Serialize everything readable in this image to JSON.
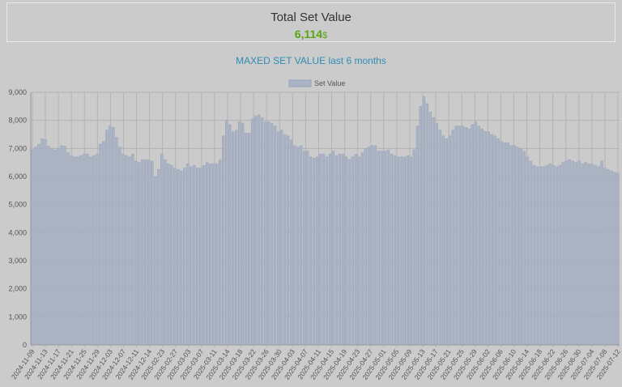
{
  "summary": {
    "title": "Total Set Value",
    "value": "6,114",
    "unit": "$",
    "value_color": "#5aa514"
  },
  "chart_title": {
    "main": "MAXED SET VALUE",
    "sub": "last 6 months"
  },
  "colors": {
    "bar_fill": "#aab3c4",
    "bar_stroke": "#97a4ba",
    "grid": "#b3b3b3",
    "text": "#555555",
    "title": "#2e8db3"
  },
  "chart_data": {
    "type": "bar",
    "title": "MAXED SET VALUE last 6 months",
    "legend": "top-center",
    "grid": true,
    "ylim": [
      0,
      9000
    ],
    "yticks": [
      "0",
      "1,000",
      "2,000",
      "3,000",
      "4,000",
      "5,000",
      "6,000",
      "7,000",
      "8,000",
      "9,000"
    ],
    "tick_labels": [
      "2024-11-09",
      "2024-11-13",
      "2024-11-17",
      "2024-11-21",
      "2024-11-25",
      "2024-11-29",
      "2024-12-03",
      "2024-12-07",
      "2024-12-11",
      "2024-12-14",
      "2025-02-23",
      "2025-02-27",
      "2025-03-03",
      "2025-03-07",
      "2025-03-11",
      "2025-03-14",
      "2025-03-18",
      "2025-03-22",
      "2025-03-26",
      "2025-03-30",
      "2025-04-03",
      "2025-04-07",
      "2025-04-11",
      "2025-04-15",
      "2025-04-19",
      "2025-04-23",
      "2025-04-27",
      "2025-05-01",
      "2025-05-05",
      "2025-05-09",
      "2025-05-13",
      "2025-05-17",
      "2025-05-21",
      "2025-05-25",
      "2025-05-29",
      "2025-06-02",
      "2025-06-06",
      "2025-06-10",
      "2025-06-14",
      "2025-06-18",
      "2025-06-22",
      "2025-06-26",
      "2025-06-30",
      "2025-07-04",
      "2025-07-08",
      "2025-07-12"
    ],
    "series": [
      {
        "name": "Set Value",
        "values": [
          6950,
          7050,
          7150,
          7350,
          7320,
          7080,
          7000,
          6950,
          7000,
          7100,
          7080,
          6850,
          6750,
          6700,
          6700,
          6750,
          6800,
          6800,
          6700,
          6750,
          6800,
          7150,
          7250,
          7650,
          7800,
          7750,
          7400,
          7050,
          6800,
          6750,
          6700,
          6800,
          6550,
          6500,
          6600,
          6600,
          6580,
          6550,
          6000,
          6250,
          6800,
          6600,
          6450,
          6400,
          6300,
          6250,
          6200,
          6300,
          6450,
          6350,
          6400,
          6300,
          6300,
          6400,
          6500,
          6450,
          6450,
          6450,
          6600,
          7450,
          8000,
          7850,
          7600,
          7650,
          7950,
          7900,
          7550,
          7550,
          8050,
          8150,
          8200,
          8100,
          7950,
          7950,
          7900,
          7800,
          7600,
          7650,
          7500,
          7450,
          7300,
          7100,
          7050,
          7100,
          6900,
          6900,
          6700,
          6650,
          6700,
          6800,
          6800,
          6700,
          6800,
          6900,
          6750,
          6800,
          6800,
          6700,
          6600,
          6700,
          6800,
          6700,
          6850,
          7000,
          7050,
          7100,
          7100,
          6900,
          6900,
          6900,
          6950,
          6800,
          6750,
          6700,
          6700,
          6700,
          6750,
          6700,
          6950,
          7800,
          8500,
          8850,
          8600,
          8300,
          8100,
          7900,
          7650,
          7450,
          7350,
          7450,
          7650,
          7800,
          7800,
          7800,
          7750,
          7700,
          7850,
          7950,
          7800,
          7700,
          7600,
          7600,
          7500,
          7450,
          7350,
          7250,
          7200,
          7200,
          7100,
          7100,
          7050,
          7000,
          6900,
          6700,
          6550,
          6400,
          6350,
          6350,
          6350,
          6400,
          6450,
          6400,
          6350,
          6400,
          6500,
          6550,
          6600,
          6550,
          6500,
          6550,
          6450,
          6500,
          6450,
          6450,
          6400,
          6350,
          6550,
          6300,
          6250,
          6200,
          6150,
          6114
        ]
      }
    ]
  }
}
